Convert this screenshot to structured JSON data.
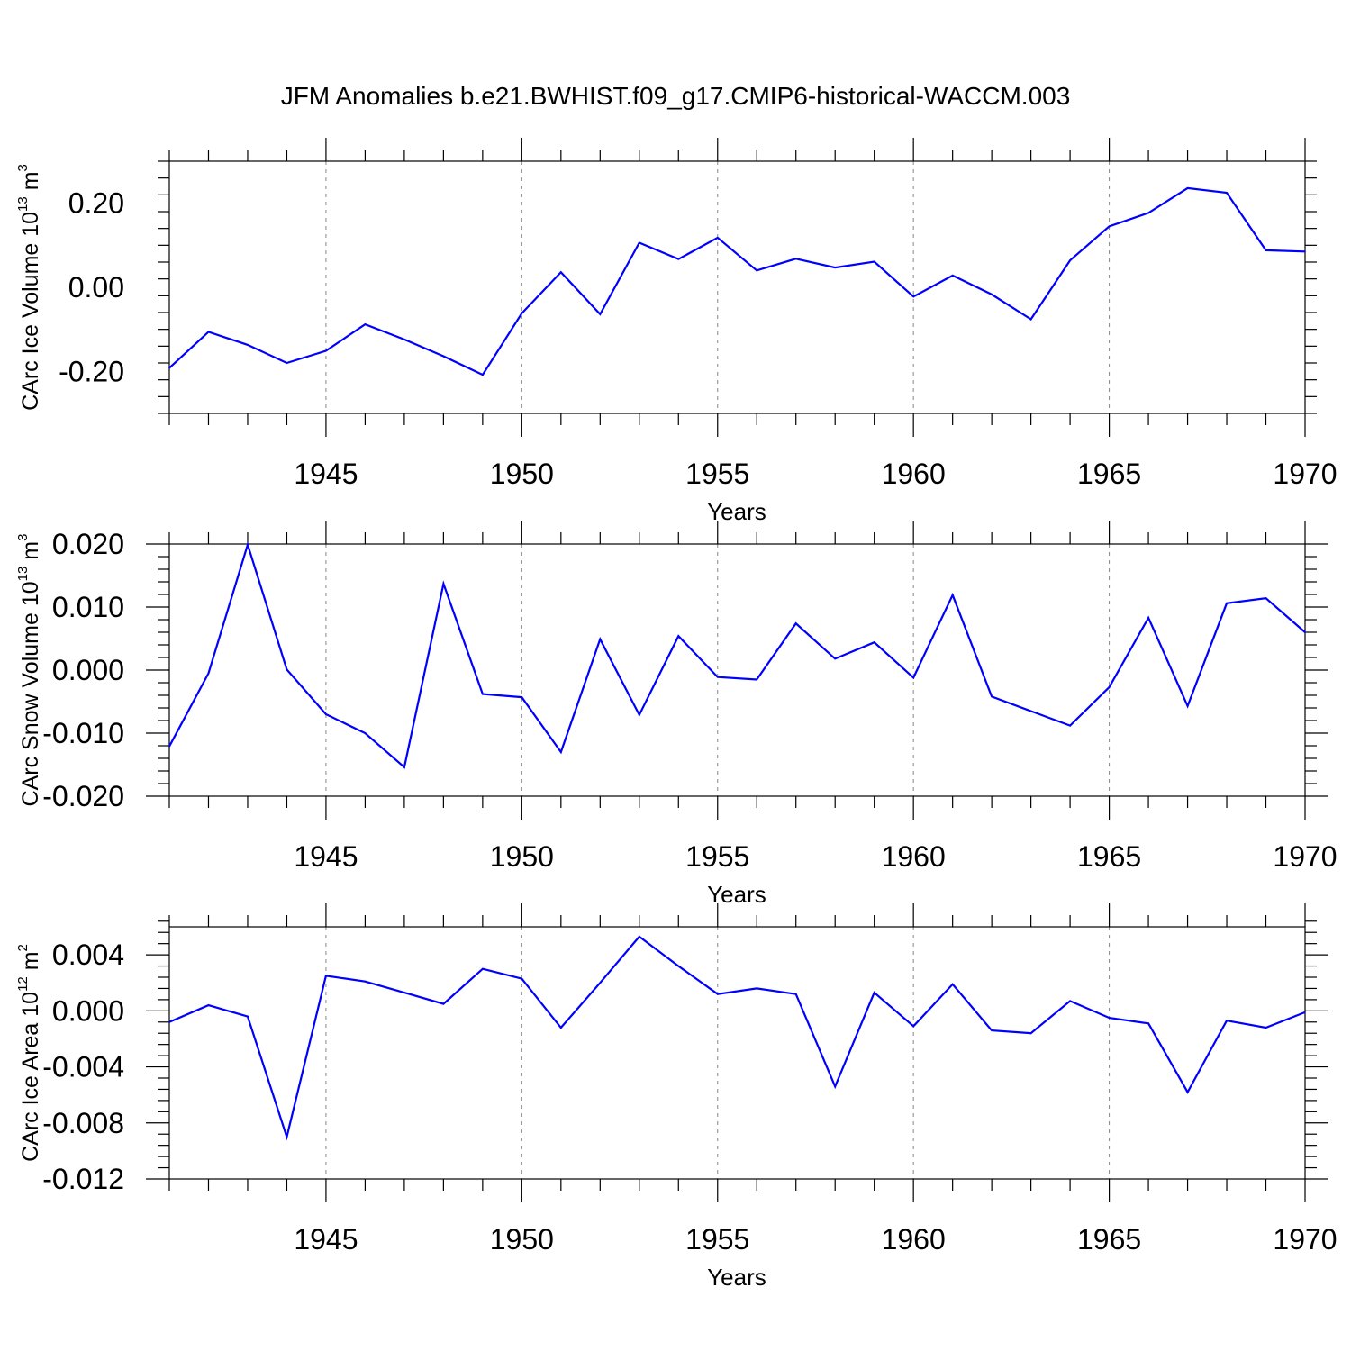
{
  "chart_data": [
    {
      "type": "line",
      "title": "JFM Anomalies b.e21.BWHIST.f09_g17.CMIP6-historical-WACCM.003",
      "xlabel": "Years",
      "ylabel": "CArc Ice Volume 10",
      "ylabel_exponent": "13",
      "ylabel_unit": " m",
      "ylabel_unit_exponent": "3",
      "xlim": [
        1941,
        1970
      ],
      "ylim": [
        -0.3,
        0.3
      ],
      "x_ticks": [
        1945,
        1950,
        1955,
        1960,
        1965,
        1970
      ],
      "x_tick_labels": [
        "1945",
        "1950",
        "1955",
        "1960",
        "1965",
        "1970"
      ],
      "y_ticks": [
        -0.2,
        0.0,
        0.2
      ],
      "y_tick_labels": [
        "-0.20",
        "0.00",
        "0.20"
      ],
      "grid": "vertical dashed at major x ticks",
      "line_color": "#0000ff",
      "x": [
        1941,
        1942,
        1943,
        1944,
        1945,
        1946,
        1947,
        1948,
        1949,
        1950,
        1951,
        1952,
        1953,
        1954,
        1955,
        1956,
        1957,
        1958,
        1959,
        1960,
        1961,
        1962,
        1963,
        1964,
        1965,
        1966,
        1967,
        1968,
        1969,
        1970
      ],
      "values": [
        -0.192,
        -0.106,
        -0.137,
        -0.18,
        -0.151,
        -0.088,
        -0.124,
        -0.164,
        -0.208,
        -0.062,
        0.036,
        -0.064,
        0.106,
        0.067,
        0.118,
        0.04,
        0.068,
        0.047,
        0.061,
        -0.022,
        0.028,
        -0.017,
        -0.076,
        0.064,
        0.145,
        0.177,
        0.236,
        0.225,
        0.088,
        0.085
      ]
    },
    {
      "type": "line",
      "xlabel": "Years",
      "ylabel": "CArc Snow Volume 10",
      "ylabel_exponent": "13",
      "ylabel_unit": " m",
      "ylabel_unit_exponent": "3",
      "xlim": [
        1941,
        1970
      ],
      "ylim": [
        -0.02,
        0.02
      ],
      "x_ticks": [
        1945,
        1950,
        1955,
        1960,
        1965,
        1970
      ],
      "x_tick_labels": [
        "1945",
        "1950",
        "1955",
        "1960",
        "1965",
        "1970"
      ],
      "y_ticks": [
        -0.02,
        -0.01,
        0.0,
        0.01,
        0.02
      ],
      "y_tick_labels": [
        "-0.020",
        "-0.010",
        "0.000",
        "0.010",
        "0.020"
      ],
      "grid": "vertical dashed at major x ticks",
      "line_color": "#0000ff",
      "x": [
        1941,
        1942,
        1943,
        1944,
        1945,
        1946,
        1947,
        1948,
        1949,
        1950,
        1951,
        1952,
        1953,
        1954,
        1955,
        1956,
        1957,
        1958,
        1959,
        1960,
        1961,
        1962,
        1963,
        1964,
        1965,
        1966,
        1967,
        1968,
        1969,
        1970
      ],
      "values": [
        -0.0121,
        -0.0005,
        0.0199,
        0.0001,
        -0.007,
        -0.01,
        -0.0154,
        0.0137,
        -0.0038,
        -0.0043,
        -0.013,
        0.0049,
        -0.0071,
        0.0054,
        -0.0011,
        -0.0015,
        0.0074,
        0.0018,
        0.0044,
        -0.0012,
        0.0119,
        -0.0042,
        -0.0065,
        -0.0088,
        -0.0027,
        0.0083,
        -0.0057,
        0.0106,
        0.0114,
        0.006
      ]
    },
    {
      "type": "line",
      "xlabel": "Years",
      "ylabel": "CArc Ice Area 10",
      "ylabel_exponent": "12",
      "ylabel_unit": " m",
      "ylabel_unit_exponent": "2",
      "xlim": [
        1941,
        1970
      ],
      "ylim": [
        -0.012,
        0.006
      ],
      "x_ticks": [
        1945,
        1950,
        1955,
        1960,
        1965,
        1970
      ],
      "x_tick_labels": [
        "1945",
        "1950",
        "1955",
        "1960",
        "1965",
        "1970"
      ],
      "y_ticks": [
        -0.012,
        -0.008,
        -0.004,
        0.0,
        0.004
      ],
      "y_tick_labels": [
        "-0.012",
        "-0.008",
        "-0.004",
        "0.000",
        "0.004"
      ],
      "grid": "vertical dashed at major x ticks",
      "line_color": "#0000ff",
      "x": [
        1941,
        1942,
        1943,
        1944,
        1945,
        1946,
        1947,
        1948,
        1949,
        1950,
        1951,
        1952,
        1953,
        1954,
        1955,
        1956,
        1957,
        1958,
        1959,
        1960,
        1961,
        1962,
        1963,
        1964,
        1965,
        1966,
        1967,
        1968,
        1969,
        1970
      ],
      "values": [
        -0.0008,
        0.0004,
        -0.0004,
        -0.009,
        0.0025,
        0.0021,
        0.0013,
        0.0005,
        0.003,
        0.0023,
        -0.0012,
        0.002,
        0.0053,
        0.0032,
        0.0012,
        0.0016,
        0.0012,
        -0.0054,
        0.0013,
        -0.0011,
        0.0019,
        -0.0014,
        -0.0016,
        0.0007,
        -0.0005,
        -0.0009,
        -0.0058,
        -0.0007,
        -0.0012,
        -0.0001
      ]
    }
  ]
}
